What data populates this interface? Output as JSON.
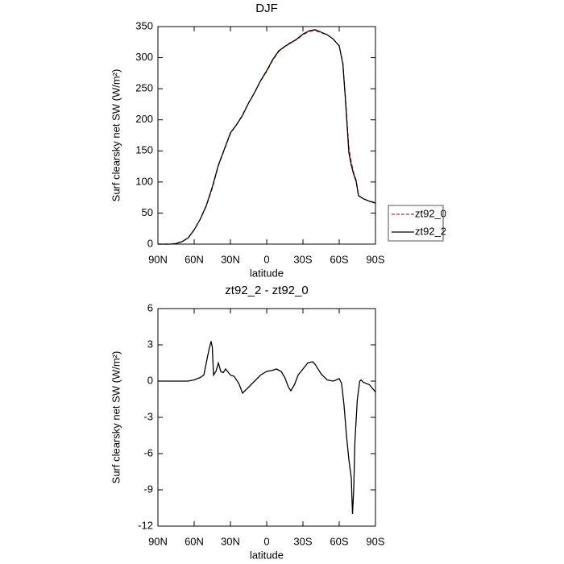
{
  "chart_data": [
    {
      "type": "line",
      "title": "DJF",
      "xlabel": "latitude",
      "ylabel": "Surf clearsky net SW (W/m²)",
      "x": [
        90,
        80,
        75,
        70,
        65,
        60,
        55,
        50,
        45,
        40,
        35,
        30,
        25,
        20,
        15,
        10,
        5,
        0,
        -5,
        -10,
        -15,
        -20,
        -25,
        -30,
        -35,
        -40,
        -45,
        -50,
        -55,
        -60,
        -63,
        -65,
        -68,
        -70,
        -72,
        -74,
        -76,
        -80,
        -85,
        -90
      ],
      "series": [
        {
          "name": "zt92_0",
          "color": "#e02020",
          "dash": true,
          "values": [
            0,
            0,
            1,
            4,
            10,
            23,
            40,
            61,
            90,
            126,
            152,
            178,
            192,
            208,
            227,
            244,
            263,
            278,
            296,
            310,
            318,
            325,
            329,
            337,
            342,
            344,
            340,
            337,
            330,
            319,
            292,
            240,
            155,
            132,
            115,
            103,
            78,
            73,
            69,
            67
          ]
        },
        {
          "name": "zt92_2",
          "color": "#000000",
          "dash": false,
          "values": [
            0,
            0,
            1,
            4,
            10,
            23,
            40,
            62,
            92,
            127,
            153,
            179,
            192,
            207,
            227,
            244,
            263,
            279,
            297,
            311,
            318,
            324,
            330,
            338,
            343,
            345,
            341,
            337,
            330,
            319,
            290,
            237,
            147,
            127,
            112,
            101,
            78,
            73,
            69,
            66
          ]
        }
      ],
      "xlim": [
        90,
        -90
      ],
      "xticks": [
        {
          "value": 90,
          "label": "90N"
        },
        {
          "value": 60,
          "label": "60N"
        },
        {
          "value": 30,
          "label": "30N"
        },
        0,
        {
          "value": -30,
          "label": "30S"
        },
        {
          "value": -60,
          "label": "60S"
        },
        {
          "value": -90,
          "label": "90S"
        }
      ],
      "ylim": [
        0,
        350
      ],
      "yticks": [
        0,
        50,
        100,
        150,
        200,
        250,
        300,
        350
      ],
      "legend": "right"
    },
    {
      "type": "line",
      "title": "zt92_2 - zt92_0",
      "xlabel": "latitude",
      "ylabel": "Surf clearsky net SW (W/m²)",
      "x": [
        90,
        65,
        60,
        55,
        52,
        50,
        48,
        46,
        45,
        44,
        42,
        40,
        38,
        36,
        34,
        30,
        27,
        23,
        20,
        18,
        15,
        10,
        5,
        0,
        -5,
        -8,
        -10,
        -12,
        -15,
        -18,
        -20,
        -23,
        -26,
        -30,
        -34,
        -38,
        -40,
        -45,
        -50,
        -55,
        -60,
        -62,
        -64,
        -66,
        -68,
        -70,
        -71,
        -72,
        -73,
        -75,
        -77,
        -78,
        -80,
        -85,
        -90
      ],
      "series": [
        {
          "name": "zt92_2 - zt92_0",
          "color": "#000000",
          "dash": false,
          "values": [
            0,
            0,
            0.1,
            0.3,
            0.5,
            1.5,
            2.5,
            3.3,
            2.8,
            0.5,
            0.8,
            1.5,
            0.8,
            0.7,
            1.0,
            0.5,
            0.4,
            -0.2,
            -1.0,
            -0.8,
            -0.5,
            0,
            0.5,
            0.8,
            0.9,
            1.0,
            0.9,
            0.8,
            0.3,
            -0.5,
            -0.8,
            -0.3,
            0.5,
            1.0,
            1.5,
            1.6,
            1.4,
            0.6,
            0.1,
            0,
            0.2,
            -0.2,
            -2,
            -4.5,
            -6.5,
            -8,
            -11,
            -9,
            -5,
            -1.5,
            0,
            0.1,
            -0.1,
            -0.3,
            -0.9
          ]
        }
      ],
      "xlim": [
        90,
        -90
      ],
      "xticks": [
        {
          "value": 90,
          "label": "90N"
        },
        {
          "value": 60,
          "label": "60N"
        },
        {
          "value": 30,
          "label": "30N"
        },
        0,
        {
          "value": -30,
          "label": "30S"
        },
        {
          "value": -60,
          "label": "60S"
        },
        {
          "value": -90,
          "label": "90S"
        }
      ],
      "ylim": [
        -12,
        6
      ],
      "yticks": [
        -12,
        -9,
        -6,
        -3,
        0,
        3,
        6
      ]
    }
  ]
}
